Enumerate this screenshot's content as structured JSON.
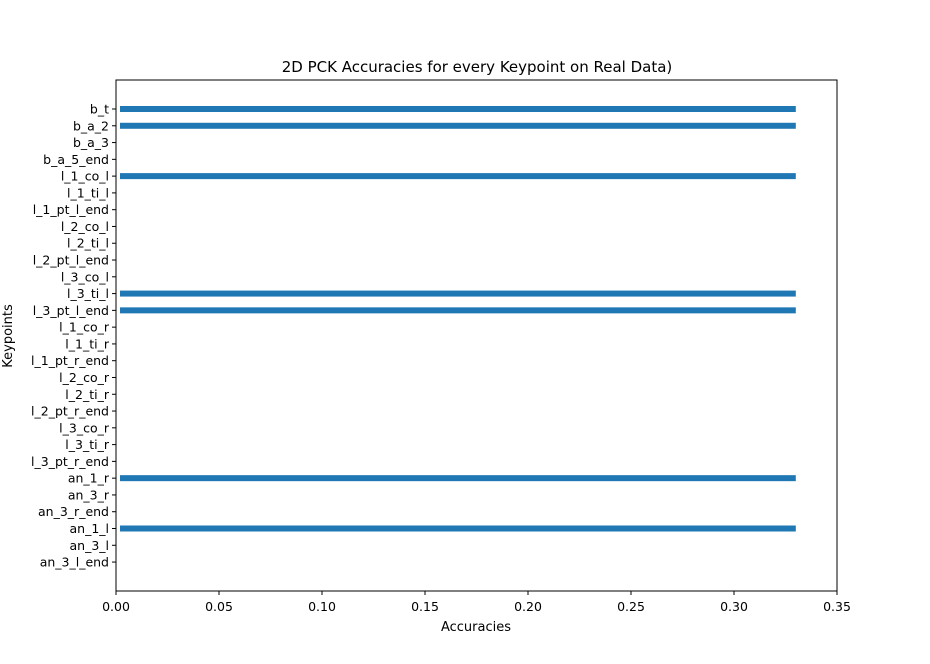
{
  "chart_data": {
    "type": "bar",
    "orientation": "horizontal",
    "title": "2D PCK Accuracies for every Keypoint on Real Data)",
    "xlabel": "Accuracies",
    "ylabel": "Keypoints",
    "xlim": [
      0,
      0.35
    ],
    "xticks": [
      "0.00",
      "0.05",
      "0.10",
      "0.15",
      "0.20",
      "0.25",
      "0.30",
      "0.35"
    ],
    "grid": false,
    "bar_color": "#1f77b4",
    "categories": [
      "b_t",
      "b_a_2",
      "b_a_3",
      "b_a_5_end",
      "l_1_co_l",
      "l_1_ti_l",
      "l_1_pt_l_end",
      "l_2_co_l",
      "l_2_ti_l",
      "l_2_pt_l_end",
      "l_3_co_l",
      "l_3_ti_l",
      "l_3_pt_l_end",
      "l_1_co_r",
      "l_1_ti_r",
      "l_1_pt_r_end",
      "l_2_co_r",
      "l_2_ti_r",
      "l_2_pt_r_end",
      "l_3_co_r",
      "l_3_ti_r",
      "l_3_pt_r_end",
      "an_1_r",
      "an_3_r",
      "an_3_r_end",
      "an_1_l",
      "an_3_l",
      "an_3_l_end"
    ],
    "values": [
      0.33,
      0.33,
      0,
      0,
      0.33,
      0,
      0,
      0,
      0,
      0,
      0,
      0.33,
      0.33,
      0,
      0,
      0,
      0,
      0,
      0,
      0,
      0,
      0,
      0.33,
      0,
      0,
      0.33,
      0,
      0
    ]
  }
}
